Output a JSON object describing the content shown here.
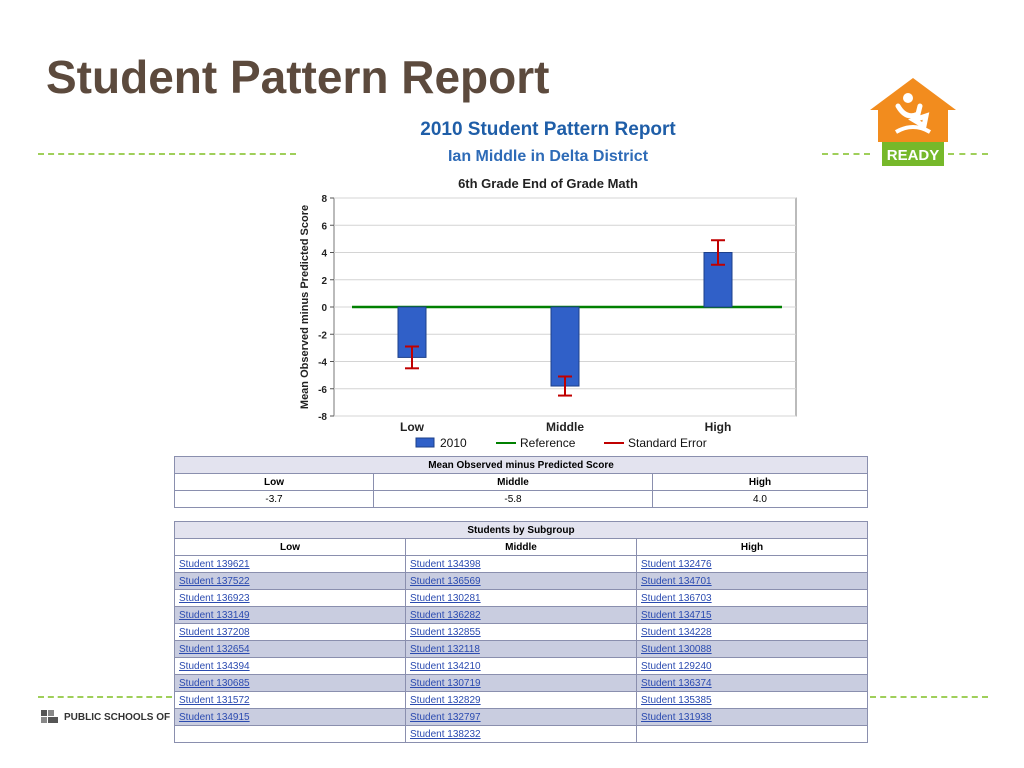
{
  "slide": {
    "title": "Student Pattern Report",
    "footer_logo_text": "PUBLIC SCHOOLS OF",
    "ready_logo_text": "READY"
  },
  "report": {
    "title": "2010 Student Pattern Report",
    "subtitle": "Ian Middle in Delta District",
    "chart_title": "6th Grade End of Grade Math"
  },
  "chart_data": {
    "type": "bar",
    "title": "6th Grade End of Grade Math",
    "categories": [
      "Low",
      "Middle",
      "High"
    ],
    "series": [
      {
        "name": "2010",
        "values": [
          -3.7,
          -5.8,
          4.0
        ],
        "color": "#3060c8"
      }
    ],
    "error_bars": {
      "name": "Standard Error",
      "low": [
        -4.5,
        -6.5,
        3.1
      ],
      "high": [
        -2.9,
        -5.1,
        4.9
      ],
      "color": "#c00000"
    },
    "reference": {
      "name": "Reference",
      "value": 0,
      "color": "#008000"
    },
    "xlabel": "",
    "ylabel": "Mean Observed minus Predicted Score",
    "ylim": [
      -8,
      8
    ],
    "yticks": [
      "-8",
      "-6",
      "-4",
      "-2",
      "0",
      "2",
      "4",
      "6",
      "8"
    ],
    "grid": true,
    "legend_position": "bottom"
  },
  "score_table": {
    "caption": "Mean Observed minus Predicted Score",
    "headers": [
      "Low",
      "Middle",
      "High"
    ],
    "values": [
      "-3.7",
      "-5.8",
      "4.0"
    ]
  },
  "subgroup_table": {
    "caption": "Students by Subgroup",
    "headers": [
      "Low",
      "Middle",
      "High"
    ],
    "rows": [
      [
        "Student 139621",
        "Student 134398",
        "Student 132476"
      ],
      [
        "Student 137522",
        "Student 136569",
        "Student 134701"
      ],
      [
        "Student 136923",
        "Student 130281",
        "Student 136703"
      ],
      [
        "Student 133149",
        "Student 136282",
        "Student 134715"
      ],
      [
        "Student 137208",
        "Student 132855",
        "Student 134228"
      ],
      [
        "Student 132654",
        "Student 132118",
        "Student 130088"
      ],
      [
        "Student 134394",
        "Student 134210",
        "Student 129240"
      ],
      [
        "Student 130685",
        "Student 130719",
        "Student 136374"
      ],
      [
        "Student 131572",
        "Student 132829",
        "Student 135385"
      ],
      [
        "Student 134915",
        "Student 132797",
        "Student 131938"
      ],
      [
        "",
        "Student 138232",
        ""
      ]
    ]
  }
}
